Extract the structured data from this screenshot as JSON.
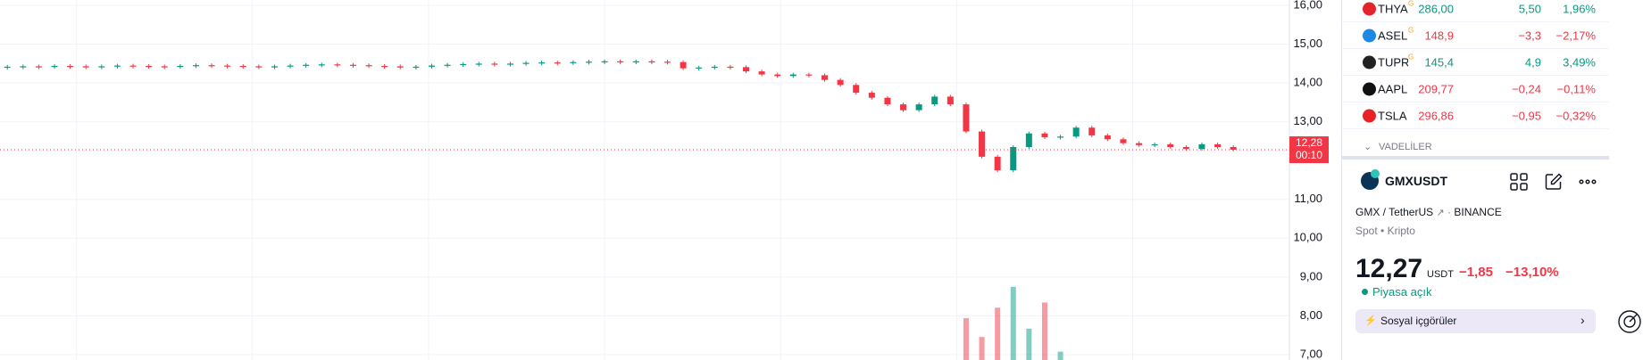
{
  "chart": {
    "colors": {
      "up": "#089981",
      "down": "#f23645"
    },
    "ylim": [
      6.86,
      16.14
    ],
    "yticks": [
      {
        "value": 16,
        "label": "16,00"
      },
      {
        "value": 15,
        "label": "15,00"
      },
      {
        "value": 14,
        "label": "14,00"
      },
      {
        "value": 13,
        "label": "13,00"
      },
      {
        "value": 11,
        "label": "11,00"
      },
      {
        "value": 10,
        "label": "10,00"
      },
      {
        "value": 9,
        "label": "9,00"
      },
      {
        "value": 8,
        "label": "8,00"
      },
      {
        "value": 7,
        "label": "7,00"
      }
    ],
    "last_price": {
      "value": 12.28,
      "label": "12,28",
      "countdown": "00:10"
    },
    "close": [
      14.42,
      14.43,
      14.42,
      14.44,
      14.43,
      14.42,
      14.43,
      14.45,
      14.44,
      14.43,
      14.42,
      14.44,
      14.46,
      14.45,
      14.44,
      14.43,
      14.41,
      14.43,
      14.45,
      14.47,
      14.48,
      14.47,
      14.46,
      14.44,
      14.43,
      14.4,
      14.42,
      14.45,
      14.47,
      14.49,
      14.5,
      14.49,
      14.5,
      14.52,
      14.53,
      14.52,
      14.54,
      14.55,
      14.56,
      14.55,
      14.56,
      14.55,
      14.54,
      14.38,
      14.4,
      14.42,
      14.41,
      14.3,
      14.22,
      14.18,
      14.22,
      14.2,
      14.08,
      13.95,
      13.75,
      13.62,
      13.45,
      13.3,
      13.45,
      13.65,
      13.45,
      12.75,
      12.1,
      11.75,
      12.35,
      12.7,
      12.6,
      12.62,
      12.85,
      12.65,
      12.55,
      12.45,
      12.4,
      12.42,
      12.35,
      12.3,
      12.42,
      12.35,
      12.28
    ],
    "volume": [
      0,
      0,
      0,
      0,
      0,
      0,
      0,
      0,
      0,
      0,
      0,
      0,
      0,
      0,
      0,
      0,
      0,
      0,
      0,
      0,
      0,
      0,
      0,
      0,
      0,
      0,
      0,
      0,
      0,
      0,
      0,
      0,
      0,
      0,
      0,
      0,
      0,
      0,
      0,
      0,
      0,
      0,
      0,
      0,
      0,
      0,
      0,
      0,
      0,
      0,
      0,
      0,
      0,
      0,
      0,
      0,
      0,
      0,
      0,
      0,
      0,
      40,
      22,
      50,
      70,
      30,
      55,
      8,
      0,
      0,
      0,
      0,
      0,
      0,
      0,
      0,
      0,
      0,
      0
    ]
  },
  "watchlist": {
    "rows": [
      {
        "symbol": "THYAO",
        "badge": "G",
        "price": "286,00",
        "change": "5,50",
        "change_pct": "1,96%",
        "direction": "up",
        "logo": "#e4232b"
      },
      {
        "symbol": "ASELS",
        "badge": "G",
        "price": "148,9",
        "change": "−3,3",
        "change_pct": "−2,17%",
        "direction": "down",
        "logo": "#1e88e5"
      },
      {
        "symbol": "TUPRS",
        "badge": "G",
        "price": "145,4",
        "change": "4,9",
        "change_pct": "3,49%",
        "direction": "up",
        "logo": "#222"
      },
      {
        "symbol": "AAPL",
        "price": "209,77",
        "change": "−0,24",
        "change_pct": "−0,11%",
        "direction": "down",
        "logo": "#111"
      },
      {
        "symbol": "TSLA",
        "price": "296,86",
        "change": "−0,95",
        "change_pct": "−0,32%",
        "direction": "down",
        "logo": "#e82127"
      }
    ],
    "section": "VADELİLER"
  },
  "details": {
    "symbol": "GMXUSDT",
    "pair": "GMX / TetherUS",
    "exchange": "BINANCE",
    "market": "Spot",
    "category": "Kripto",
    "price": "12,27",
    "currency": "USDT",
    "change": "−1,85",
    "change_pct": "−13,10%",
    "status": "Piyasa açık",
    "social": "Sosyal içgörüler"
  }
}
